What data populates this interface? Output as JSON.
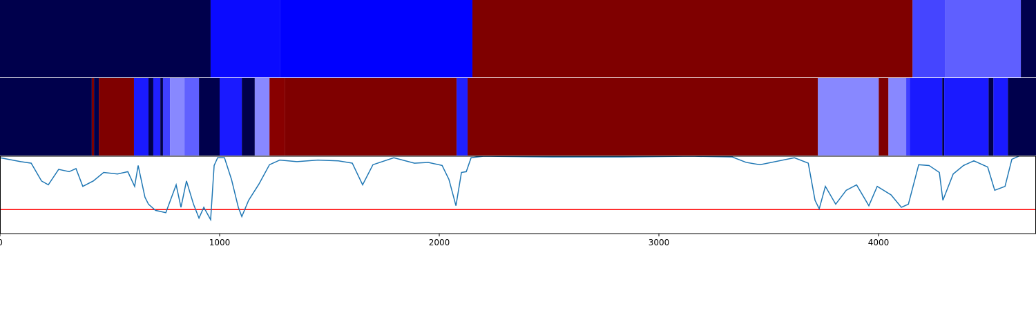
{
  "chart_data": [
    {
      "type": "segments",
      "bins": [
        0,
        959,
        1274,
        2151,
        4155,
        4302,
        4648,
        4717
      ],
      "colors": [
        "#00004c",
        "#0a0aff",
        "#0000ff",
        "#7f0000",
        "#4545ff",
        "#5f5fff",
        "#00004c"
      ]
    },
    {
      "type": "segments",
      "bins": [
        0,
        418,
        428,
        450,
        610,
        676,
        698,
        730,
        742,
        774,
        840,
        906,
        1000,
        1101,
        1160,
        1227,
        1296,
        2079,
        2129,
        3724,
        4001,
        4045,
        4126,
        4142,
        4290,
        4299,
        4501,
        4523,
        4589,
        4717
      ],
      "colors": [
        "#00004c",
        "#7f0000",
        "#00004c",
        "#7f0000",
        "#1a1aff",
        "#00004c",
        "#2020ff",
        "#00004c",
        "#4040ff",
        "#8888ff",
        "#6060ff",
        "#00004c",
        "#1a1aff",
        "#00004c",
        "#8888ff",
        "#880000",
        "#7f0000",
        "#2020ff",
        "#7f0000",
        "#8888ff",
        "#7f0000",
        "#8888ff",
        "#4040ff",
        "#1a1aff",
        "#00004c",
        "#1a1aff",
        "#00004c",
        "#1a1aff",
        "#00004c"
      ]
    },
    {
      "type": "line",
      "x": [
        0,
        94,
        142,
        189,
        220,
        267,
        315,
        346,
        377,
        425,
        472,
        535,
        582,
        613,
        629,
        660,
        676,
        708,
        755,
        802,
        824,
        849,
        881,
        906,
        928,
        959,
        975,
        991,
        1022,
        1054,
        1085,
        1101,
        1132,
        1179,
        1227,
        1274,
        1352,
        1447,
        1541,
        1604,
        1651,
        1698,
        1793,
        1887,
        1950,
        2013,
        2044,
        2076,
        2101,
        2123,
        2145,
        2202,
        2516,
        2831,
        3145,
        3334,
        3397,
        3460,
        3617,
        3680,
        3711,
        3730,
        3758,
        3805,
        3853,
        3900,
        3956,
        3994,
        4057,
        4104,
        4136,
        4183,
        4230,
        4277,
        4293,
        4340,
        4387,
        4434,
        4497,
        4529,
        4576,
        4607,
        4639
      ],
      "values": [
        0.98,
        0.93,
        0.91,
        0.68,
        0.63,
        0.83,
        0.8,
        0.84,
        0.61,
        0.68,
        0.79,
        0.77,
        0.8,
        0.61,
        0.88,
        0.47,
        0.38,
        0.3,
        0.27,
        0.63,
        0.34,
        0.68,
        0.38,
        0.2,
        0.34,
        0.18,
        0.88,
        0.98,
        0.98,
        0.7,
        0.34,
        0.22,
        0.43,
        0.64,
        0.89,
        0.95,
        0.93,
        0.95,
        0.94,
        0.91,
        0.63,
        0.89,
        0.98,
        0.91,
        0.92,
        0.88,
        0.7,
        0.36,
        0.79,
        0.8,
        0.98,
        1.0,
        0.99,
        0.99,
        1.0,
        0.99,
        0.92,
        0.89,
        0.98,
        0.91,
        0.43,
        0.32,
        0.61,
        0.38,
        0.56,
        0.63,
        0.36,
        0.61,
        0.5,
        0.34,
        0.38,
        0.89,
        0.88,
        0.79,
        0.43,
        0.77,
        0.88,
        0.94,
        0.86,
        0.56,
        0.61,
        0.96,
        1.0
      ],
      "color": "#1f77b4",
      "hline": 0.31,
      "hline_color": "#ff0000",
      "ylim": [
        0,
        1
      ],
      "xlim": [
        0,
        4717
      ],
      "xticks": [
        0,
        1000,
        2000,
        3000,
        4000
      ]
    }
  ]
}
